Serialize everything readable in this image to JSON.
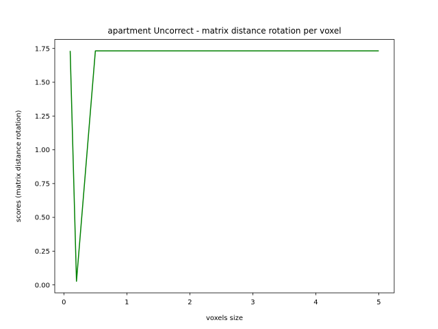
{
  "chart_data": {
    "type": "line",
    "title": "apartment Uncorrect - matrix distance rotation per voxel",
    "xlabel": "voxels size",
    "ylabel": "scores (matrix distance rotation)",
    "xlim": [
      -0.145,
      5.245
    ],
    "ylim": [
      -0.0585,
      1.8165
    ],
    "xticks": [
      0,
      1,
      2,
      3,
      4,
      5
    ],
    "xtick_labels": [
      "0",
      "1",
      "2",
      "3",
      "4",
      "5"
    ],
    "yticks": [
      0.0,
      0.25,
      0.5,
      0.75,
      1.0,
      1.25,
      1.5,
      1.75
    ],
    "ytick_labels": [
      "0.00",
      "0.25",
      "0.50",
      "0.75",
      "1.00",
      "1.25",
      "1.50",
      "1.75"
    ],
    "grid": false,
    "series": [
      {
        "color": "#008000",
        "x": [
          0.1,
          0.2,
          0.5,
          1.0,
          1.5,
          2.0,
          2.5,
          3.0,
          3.5,
          4.0,
          4.5,
          5.0
        ],
        "y": [
          1.732,
          0.027,
          1.732,
          1.732,
          1.732,
          1.732,
          1.732,
          1.732,
          1.732,
          1.732,
          1.732,
          1.732
        ]
      }
    ]
  }
}
